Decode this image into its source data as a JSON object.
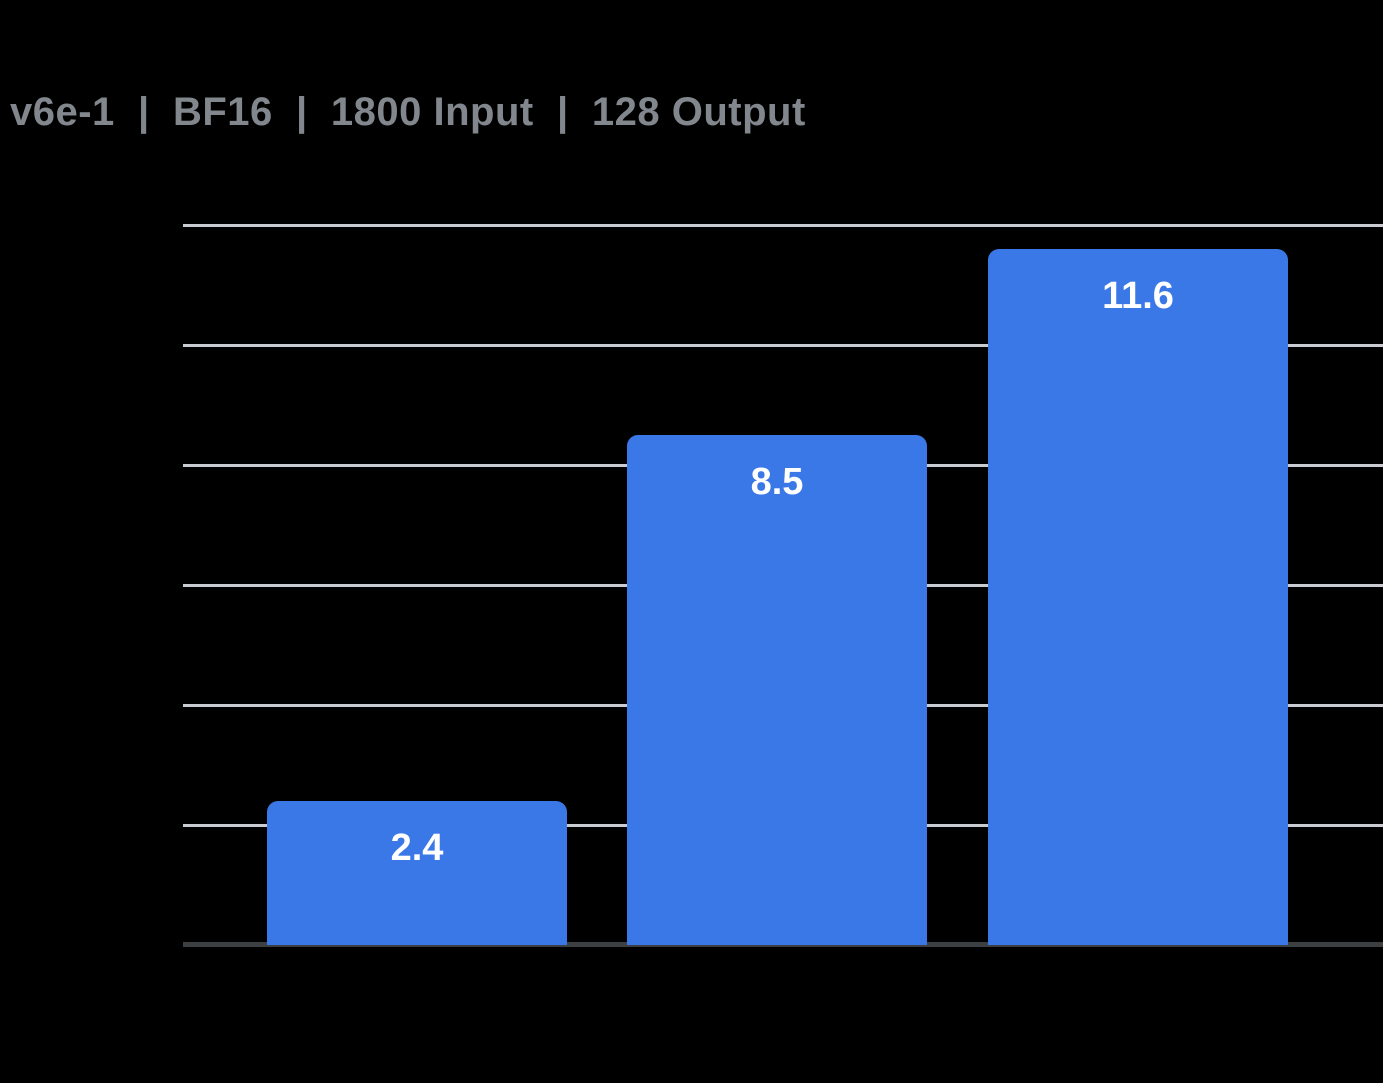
{
  "page": {
    "background": "#000000"
  },
  "header": {
    "title": "v6e-1  |  BF16  |  1800 Input  |  128 Output",
    "title_color": "#82878E"
  },
  "chart_data": {
    "type": "bar",
    "title": "v6e-1 | BF16 | 1800 Input | 128 Output",
    "categories": [
      "",
      "",
      ""
    ],
    "values": [
      2.4,
      8.5,
      11.6
    ],
    "value_labels": [
      "2.4",
      "8.5",
      "11.6"
    ],
    "xlabel": "",
    "ylabel": "",
    "ylim": [
      0,
      12
    ],
    "gridline_step": 2,
    "grid": true,
    "legend": false,
    "bar_color": "#3B78E7",
    "value_label_color": "#FFFFFF",
    "gridline_color": "#C8CBD0",
    "axis_color": "#3C4043",
    "title_color": "#82878E",
    "background_color": "#000000"
  }
}
